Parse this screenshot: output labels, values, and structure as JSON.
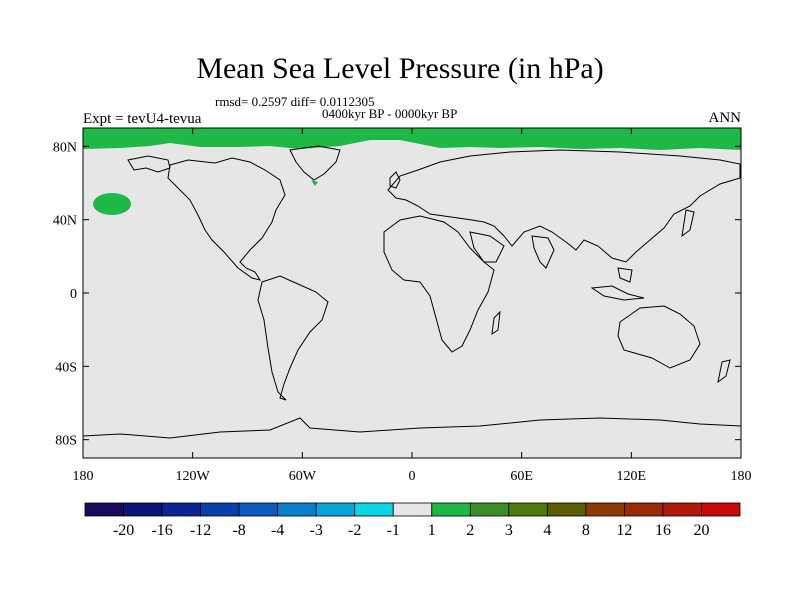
{
  "title": "Mean Sea Level Pressure (in hPa)",
  "stats": "rmsd= 0.2597 diff= 0.0112305",
  "period": "0400kyr BP - 0000kyr BP",
  "left_label": "Expt = tevU4-tevua",
  "right_label": "ANN",
  "map": {
    "projection": "cylindrical-equidistant",
    "lon_range": [
      -180,
      180
    ],
    "lat_range": [
      -90,
      90
    ],
    "background_color": "#e6e6e6",
    "land_outline_color": "#000000",
    "anomaly_color": "#1db845",
    "lat_ticks": [
      {
        "value": 80,
        "label": "80N"
      },
      {
        "value": 40,
        "label": "40N"
      },
      {
        "value": 0,
        "label": "0"
      },
      {
        "value": -40,
        "label": "40S"
      },
      {
        "value": -80,
        "label": "80S"
      }
    ],
    "lon_ticks": [
      {
        "value": -180,
        "label": "180"
      },
      {
        "value": -120,
        "label": "120W"
      },
      {
        "value": -60,
        "label": "60W"
      },
      {
        "value": 0,
        "label": "0"
      },
      {
        "value": 60,
        "label": "60E"
      },
      {
        "value": 120,
        "label": "120E"
      },
      {
        "value": 180,
        "label": "180"
      }
    ]
  },
  "colorbar": {
    "colors": [
      "#1a0a5c",
      "#0c1478",
      "#0a2496",
      "#0a3ea8",
      "#0c5cbf",
      "#0a7fcc",
      "#0aa3da",
      "#08d6e6",
      "#e6e6e6",
      "#1db845",
      "#3d8a28",
      "#4e7a10",
      "#5c5c05",
      "#8c3a08",
      "#9a2a08",
      "#b01a0a",
      "#c80a0a"
    ],
    "labels": [
      "-20",
      "-16",
      "-12",
      "-8",
      "-4",
      "-3",
      "-2",
      "-1",
      "1",
      "2",
      "3",
      "4",
      "8",
      "12",
      "16",
      "20"
    ]
  }
}
